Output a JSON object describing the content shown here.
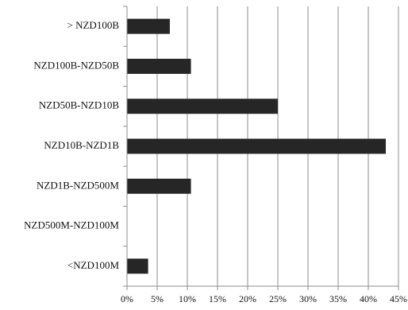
{
  "chart_data": {
    "type": "bar",
    "orientation": "horizontal",
    "categories": [
      "> NZD100B",
      "NZD100B-NZD50B",
      "NZD50B-NZD10B",
      "NZD10B-NZD1B",
      "NZD1B-NZD500M",
      "NZD500M-NZD100M",
      "<NZD100M"
    ],
    "values": [
      7.1,
      10.6,
      25.0,
      42.9,
      10.6,
      0,
      3.5
    ],
    "xlim": [
      0,
      45
    ],
    "xticks": [
      0,
      5,
      10,
      15,
      20,
      25,
      30,
      35,
      40,
      45
    ],
    "xtick_labels": [
      "0%",
      "5%",
      "10%",
      "15%",
      "20%",
      "25%",
      "30%",
      "35%",
      "40%",
      "45%"
    ],
    "title": "",
    "xlabel": "",
    "ylabel": "",
    "grid": "vertical",
    "legend": "none",
    "bar_color": "#262626",
    "grid_color": "#8c8c8c"
  }
}
